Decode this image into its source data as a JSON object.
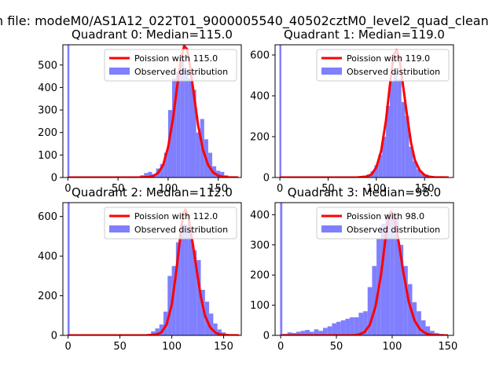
{
  "figure": {
    "suptitle": "n file: modeM0/AS1A12_022T01_9000005540_40502cztM0_level2_quad_clean",
    "colors": {
      "hist": "#7f7fff",
      "curve": "#ff0000",
      "axes": "#000000",
      "background": "#ffffff"
    }
  },
  "chart_data": [
    {
      "type": "bar",
      "title": "Quadrant 0: Median=115.0",
      "xlim": [
        -5,
        173
      ],
      "ylim": [
        0,
        590
      ],
      "xticks": [
        0,
        50,
        100,
        150
      ],
      "yticks": [
        0,
        100,
        200,
        300,
        400,
        500
      ],
      "legend": {
        "placement": "top-right",
        "entries": [
          "Poission with 115.0",
          "Observed distribution"
        ]
      },
      "hist": {
        "name": "Observed distribution",
        "bins": [
          [
            -0.5,
            1.5,
            590
          ],
          [
            72,
            76,
            10
          ],
          [
            76,
            80,
            20
          ],
          [
            80,
            84,
            25
          ],
          [
            84,
            88,
            15
          ],
          [
            88,
            92,
            40
          ],
          [
            92,
            96,
            60
          ],
          [
            96,
            100,
            110
          ],
          [
            100,
            104,
            300
          ],
          [
            104,
            108,
            440
          ],
          [
            108,
            112,
            470
          ],
          [
            112,
            116,
            530
          ],
          [
            116,
            120,
            480
          ],
          [
            120,
            124,
            440
          ],
          [
            124,
            128,
            390
          ],
          [
            128,
            132,
            200
          ],
          [
            132,
            136,
            260
          ],
          [
            136,
            140,
            170
          ],
          [
            140,
            144,
            110
          ],
          [
            144,
            148,
            50
          ],
          [
            148,
            152,
            30
          ],
          [
            152,
            156,
            25
          ],
          [
            156,
            160,
            10
          ]
        ]
      },
      "curve": {
        "name": "Poission with 115.0",
        "points": [
          [
            0,
            0
          ],
          [
            70,
            0
          ],
          [
            80,
            2
          ],
          [
            85,
            6
          ],
          [
            90,
            20
          ],
          [
            95,
            55
          ],
          [
            100,
            135
          ],
          [
            105,
            265
          ],
          [
            110,
            440
          ],
          [
            113,
            530
          ],
          [
            116,
            585
          ],
          [
            119,
            570
          ],
          [
            122,
            490
          ],
          [
            126,
            360
          ],
          [
            130,
            230
          ],
          [
            135,
            120
          ],
          [
            140,
            55
          ],
          [
            145,
            22
          ],
          [
            150,
            8
          ],
          [
            155,
            3
          ],
          [
            160,
            1
          ],
          [
            170,
            0
          ]
        ]
      }
    },
    {
      "type": "bar",
      "title": "Quadrant 1: Median=119.0",
      "xlim": [
        -5,
        180
      ],
      "ylim": [
        0,
        650
      ],
      "xticks": [
        0,
        50,
        100,
        150
      ],
      "yticks": [
        0,
        200,
        400,
        600
      ],
      "legend": {
        "placement": "top-right",
        "entries": [
          "Poission with 119.0",
          "Observed distribution"
        ]
      },
      "hist": {
        "name": "Observed distribution",
        "bins": [
          [
            -0.5,
            1.5,
            650
          ],
          [
            90,
            94,
            15
          ],
          [
            94,
            98,
            30
          ],
          [
            98,
            102,
            60
          ],
          [
            102,
            106,
            110
          ],
          [
            106,
            110,
            200
          ],
          [
            110,
            114,
            350
          ],
          [
            114,
            118,
            470
          ],
          [
            118,
            122,
            520
          ],
          [
            122,
            126,
            480
          ],
          [
            126,
            130,
            370
          ],
          [
            130,
            134,
            300
          ],
          [
            134,
            138,
            150
          ],
          [
            138,
            142,
            80
          ],
          [
            142,
            146,
            40
          ],
          [
            146,
            150,
            20
          ],
          [
            150,
            154,
            10
          ]
        ]
      },
      "curve": {
        "name": "Poission with 119.0",
        "points": [
          [
            0,
            0
          ],
          [
            80,
            0
          ],
          [
            90,
            5
          ],
          [
            95,
            15
          ],
          [
            100,
            50
          ],
          [
            105,
            130
          ],
          [
            110,
            280
          ],
          [
            114,
            450
          ],
          [
            118,
            600
          ],
          [
            121,
            625
          ],
          [
            124,
            580
          ],
          [
            128,
            440
          ],
          [
            132,
            300
          ],
          [
            136,
            170
          ],
          [
            140,
            85
          ],
          [
            145,
            35
          ],
          [
            150,
            12
          ],
          [
            155,
            4
          ],
          [
            160,
            1
          ],
          [
            175,
            0
          ]
        ]
      }
    },
    {
      "type": "bar",
      "title": "Quadrant 2: Median=112.0",
      "xlim": [
        -5,
        167
      ],
      "ylim": [
        0,
        670
      ],
      "xticks": [
        0,
        50,
        100,
        150
      ],
      "yticks": [
        0,
        200,
        400,
        600
      ],
      "legend": {
        "placement": "top-right",
        "entries": [
          "Poission with 112.0",
          "Observed distribution"
        ]
      },
      "hist": {
        "name": "Observed distribution",
        "bins": [
          [
            -0.5,
            1.5,
            670
          ],
          [
            80,
            84,
            20
          ],
          [
            84,
            88,
            35
          ],
          [
            88,
            92,
            55
          ],
          [
            92,
            96,
            120
          ],
          [
            96,
            100,
            300
          ],
          [
            100,
            104,
            350
          ],
          [
            104,
            108,
            470
          ],
          [
            108,
            112,
            560
          ],
          [
            112,
            116,
            560
          ],
          [
            116,
            120,
            540
          ],
          [
            120,
            124,
            430
          ],
          [
            124,
            128,
            380
          ],
          [
            128,
            132,
            230
          ],
          [
            132,
            136,
            170
          ],
          [
            136,
            140,
            110
          ],
          [
            140,
            144,
            60
          ],
          [
            144,
            148,
            30
          ],
          [
            148,
            152,
            15
          ],
          [
            152,
            156,
            5
          ]
        ]
      },
      "curve": {
        "name": "Poission with 112.0",
        "points": [
          [
            0,
            0
          ],
          [
            75,
            0
          ],
          [
            85,
            4
          ],
          [
            90,
            15
          ],
          [
            95,
            55
          ],
          [
            100,
            155
          ],
          [
            104,
            310
          ],
          [
            108,
            490
          ],
          [
            111,
            610
          ],
          [
            113,
            635
          ],
          [
            116,
            600
          ],
          [
            120,
            470
          ],
          [
            124,
            330
          ],
          [
            128,
            195
          ],
          [
            132,
            100
          ],
          [
            137,
            40
          ],
          [
            142,
            14
          ],
          [
            147,
            4
          ],
          [
            155,
            1
          ],
          [
            165,
            0
          ]
        ]
      }
    },
    {
      "type": "bar",
      "title": "Quadrant 3: Median=98.0",
      "xlim": [
        -5,
        155
      ],
      "ylim": [
        0,
        440
      ],
      "xticks": [
        0,
        50,
        100,
        150
      ],
      "yticks": [
        0,
        100,
        200,
        300,
        400
      ],
      "legend": {
        "placement": "top-right",
        "entries": [
          "Poission with 98.0",
          "Observed distribution"
        ]
      },
      "hist": {
        "name": "Observed distribution",
        "bins": [
          [
            -0.5,
            1.5,
            440
          ],
          [
            2,
            6,
            5
          ],
          [
            6,
            10,
            10
          ],
          [
            10,
            14,
            8
          ],
          [
            14,
            18,
            12
          ],
          [
            18,
            22,
            15
          ],
          [
            22,
            26,
            18
          ],
          [
            26,
            30,
            12
          ],
          [
            30,
            34,
            20
          ],
          [
            34,
            38,
            15
          ],
          [
            38,
            42,
            25
          ],
          [
            42,
            46,
            30
          ],
          [
            46,
            50,
            40
          ],
          [
            50,
            54,
            45
          ],
          [
            54,
            58,
            50
          ],
          [
            58,
            62,
            55
          ],
          [
            62,
            66,
            60
          ],
          [
            66,
            70,
            60
          ],
          [
            70,
            74,
            75
          ],
          [
            74,
            78,
            80
          ],
          [
            78,
            82,
            160
          ],
          [
            82,
            86,
            230
          ],
          [
            86,
            90,
            320
          ],
          [
            90,
            94,
            370
          ],
          [
            94,
            98,
            400
          ],
          [
            98,
            102,
            400
          ],
          [
            102,
            106,
            390
          ],
          [
            106,
            110,
            300
          ],
          [
            110,
            114,
            230
          ],
          [
            114,
            118,
            170
          ],
          [
            118,
            122,
            110
          ],
          [
            122,
            126,
            80
          ],
          [
            126,
            130,
            50
          ],
          [
            130,
            134,
            30
          ],
          [
            134,
            138,
            15
          ],
          [
            138,
            142,
            8
          ],
          [
            142,
            146,
            5
          ],
          [
            146,
            150,
            3
          ]
        ]
      },
      "curve": {
        "name": "Poission with 98.0",
        "points": [
          [
            0,
            0
          ],
          [
            65,
            0
          ],
          [
            70,
            3
          ],
          [
            75,
            10
          ],
          [
            80,
            35
          ],
          [
            85,
            95
          ],
          [
            90,
            200
          ],
          [
            94,
            320
          ],
          [
            97,
            395
          ],
          [
            99,
            410
          ],
          [
            102,
            390
          ],
          [
            105,
            330
          ],
          [
            110,
            210
          ],
          [
            115,
            110
          ],
          [
            120,
            50
          ],
          [
            125,
            20
          ],
          [
            130,
            7
          ],
          [
            135,
            2
          ],
          [
            140,
            0
          ],
          [
            150,
            0
          ]
        ]
      }
    }
  ]
}
